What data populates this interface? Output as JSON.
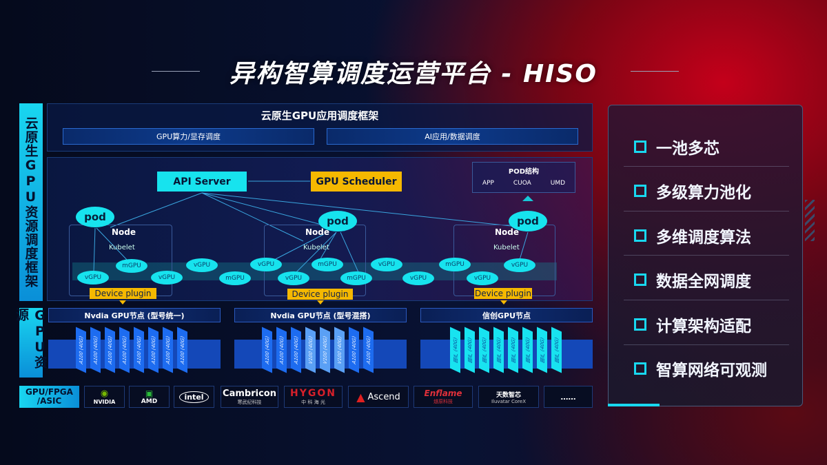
{
  "title": "异构智算调度运营平台 - HISO",
  "left_labels": {
    "framework": "云原生GPU资源调度框架",
    "resources": "GPU资源",
    "hardware": "GPU/FPGA /ASIC"
  },
  "framework": {
    "header": "云原生GPU应用调度框架",
    "sub": [
      "GPU算力/显存调度",
      "AI应用/数据调度"
    ]
  },
  "diagram": {
    "api_server": "API Server",
    "gpu_scheduler": "GPU Scheduler",
    "pod_structure": {
      "title": "POD结构",
      "items": [
        "APP",
        "CUOA",
        "UMD"
      ]
    },
    "pod": "pod",
    "node": "Node",
    "kubelet": "Kubelet",
    "device_plugin": "Device plugin",
    "vgpu": "vGPU",
    "mgpu": "mGPU"
  },
  "gpu_groups": [
    {
      "title": "Nvdia GPU节点 (型号统一)",
      "cards": [
        "A100 (40G)",
        "A100 (40G)",
        "A100 (40G)",
        "A100 (40G)",
        "A100 (40G)",
        "A100 (40G)",
        "A100 (40G)",
        "A100 (40G)"
      ]
    },
    {
      "title": "Nvdia GPU节点 (型号混搭)",
      "cards": [
        "A100 (40G)",
        "A100 (40G)",
        "A100 (40G)",
        "V100 (40G)",
        "V100 (40G)",
        "V100 (40G)",
        "A100 (40G)",
        "A100 (40G)"
      ]
    },
    {
      "title": "信创GPU节点",
      "cards": [
        "国产 (40G)",
        "国产 (40G)",
        "国产 (40G)",
        "国产 (40G)",
        "国产 (40G)",
        "国产 (40G)",
        "国产 (40G)",
        "国产 (40G)"
      ]
    }
  ],
  "vendors": [
    {
      "name": "NVIDIA",
      "sub": ""
    },
    {
      "name": "AMD",
      "sub": ""
    },
    {
      "name": "intel",
      "sub": ""
    },
    {
      "name": "Cambricon",
      "sub": "寒武纪科技"
    },
    {
      "name": "HYGON",
      "sub": "中 科 海 光"
    },
    {
      "name": "Ascend",
      "sub": ""
    },
    {
      "name": "Enflame",
      "sub": "燧原科技"
    },
    {
      "name": "天数智芯",
      "sub": "Iluvatar CoreX"
    },
    {
      "name": "……",
      "sub": ""
    }
  ],
  "features": [
    "一池多芯",
    "多级算力池化",
    "多维调度算法",
    "数据全网调度",
    "计算架构适配",
    "智算网络可观测"
  ],
  "colors": {
    "cyan": "#17e3ee",
    "yellow": "#f5b800",
    "blue": "#1d6cf0",
    "red_glow": "#c4001a"
  }
}
